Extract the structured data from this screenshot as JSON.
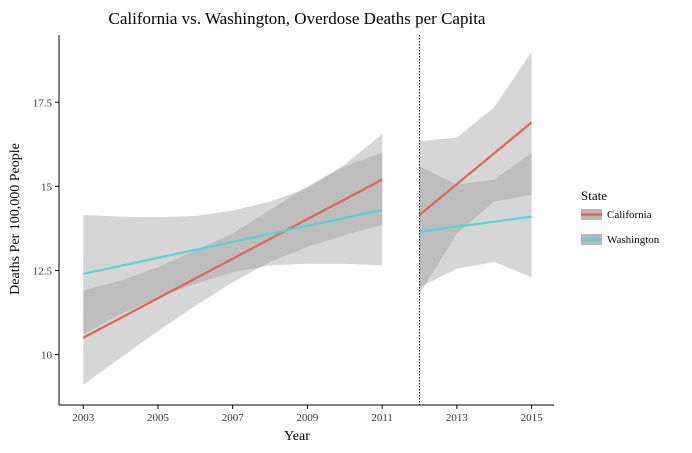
{
  "chart_data": {
    "type": "line",
    "title": "California vs. Washington, Overdose Deaths per Capita",
    "xlabel": "Year",
    "ylabel": "Deaths Per 100,000 People",
    "xlim": [
      2002.35,
      2015.6
    ],
    "ylim": [
      8.5,
      19.5
    ],
    "xticks": [
      2003,
      2005,
      2007,
      2009,
      2011,
      2013,
      2015
    ],
    "yticks": [
      10,
      12.5,
      15,
      17.5
    ],
    "xtick_labels": [
      "2003",
      "2005",
      "2007",
      "2009",
      "2011",
      "2013",
      "2015"
    ],
    "ytick_labels": [
      "10",
      "12.5",
      "15",
      "17.5"
    ],
    "grid": false,
    "cutoff_x": 2012,
    "legend": {
      "title": "State",
      "placement": "right"
    },
    "series": [
      {
        "name": "California",
        "color": "#e0645a",
        "segments": [
          {
            "x": [
              2003,
              2011
            ],
            "y": [
              10.5,
              15.2
            ],
            "band_x": [
              2003,
              2004,
              2005,
              2006,
              2007,
              2008,
              2009,
              2010,
              2011
            ],
            "band_lower": [
              9.1,
              9.9,
              10.7,
              11.45,
              12.15,
              12.75,
              13.2,
              13.55,
              13.85
            ],
            "band_upper": [
              11.9,
              12.2,
              12.6,
              13.1,
              13.6,
              14.3,
              15.0,
              15.6,
              16.0
            ]
          },
          {
            "x": [
              2012,
              2015
            ],
            "y": [
              14.15,
              16.9
            ],
            "band_x": [
              2012,
              2013,
              2014,
              2015
            ],
            "band_lower": [
              11.8,
              13.6,
              14.55,
              14.75
            ],
            "band_upper": [
              16.35,
              16.45,
              17.35,
              19.0
            ]
          }
        ]
      },
      {
        "name": "Washington",
        "color": "#59d3da",
        "segments": [
          {
            "x": [
              2003,
              2011
            ],
            "y": [
              12.4,
              14.3
            ],
            "band_x": [
              2003,
              2004,
              2005,
              2006,
              2007,
              2008,
              2009,
              2010,
              2011
            ],
            "band_lower": [
              10.6,
              11.2,
              11.7,
              12.1,
              12.45,
              12.65,
              12.7,
              12.7,
              12.65
            ],
            "band_upper": [
              14.15,
              14.1,
              14.08,
              14.12,
              14.28,
              14.55,
              14.95,
              15.65,
              16.55
            ]
          },
          {
            "x": [
              2012,
              2015
            ],
            "y": [
              13.65,
              14.1
            ],
            "band_x": [
              2012,
              2013,
              2014,
              2015
            ],
            "band_lower": [
              12.0,
              12.55,
              12.75,
              12.3
            ],
            "band_upper": [
              15.6,
              15.05,
              15.2,
              16.0
            ]
          }
        ]
      }
    ]
  }
}
